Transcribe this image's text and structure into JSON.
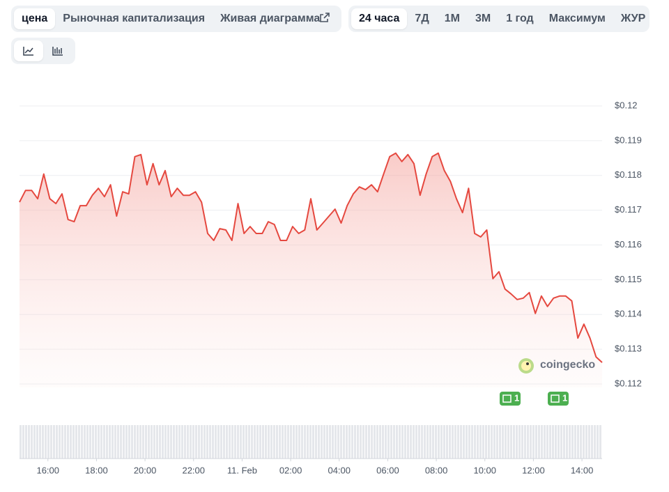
{
  "tabs": [
    "цена",
    "Рыночная капитализация",
    "Живая диаграмма"
  ],
  "ranges": [
    "24 часа",
    "7Д",
    "1М",
    "3М",
    "1 год",
    "Максимум",
    "ЖУР"
  ],
  "watermark": "coingecko",
  "news_badges": [
    "1",
    "1"
  ],
  "chart_data": {
    "type": "line",
    "x": [
      14.83,
      15.08,
      15.33,
      15.58,
      15.83,
      16.08,
      16.33,
      16.58,
      16.83,
      17.08,
      17.33,
      17.58,
      17.83,
      18.08,
      18.33,
      18.58,
      18.83,
      19.08,
      19.33,
      19.58,
      19.83,
      20.08,
      20.33,
      20.58,
      20.83,
      21.08,
      21.33,
      21.58,
      21.83,
      22.08,
      22.33,
      22.58,
      22.83,
      23.08,
      23.33,
      23.58,
      23.83,
      24.08,
      24.33,
      24.58,
      24.83,
      25.08,
      25.33,
      25.58,
      25.83,
      26.08,
      26.33,
      26.58,
      26.83,
      27.08,
      27.33,
      27.58,
      27.83,
      28.08,
      28.33,
      28.58,
      28.83,
      29.08,
      29.33,
      29.58,
      29.83,
      30.08,
      30.33,
      30.58,
      30.83,
      31.08,
      31.33,
      31.58,
      31.83,
      32.08,
      32.33,
      32.58,
      32.83,
      33.08,
      33.33,
      33.58,
      33.83,
      34.08,
      34.33,
      34.58,
      34.83,
      35.08,
      35.33,
      35.58,
      35.83,
      36.08,
      36.33,
      36.58,
      36.83,
      37.08,
      37.33,
      37.58,
      37.83,
      38.08,
      38.33,
      38.58,
      38.83
    ],
    "series": [
      {
        "color": "#e5483f",
        "values": [
          0.11723,
          0.11757,
          0.11757,
          0.11733,
          0.11804,
          0.11733,
          0.11719,
          0.11747,
          0.11673,
          0.11667,
          0.11713,
          0.11713,
          0.11743,
          0.11763,
          0.11739,
          0.11773,
          0.11683,
          0.11753,
          0.11747,
          0.11854,
          0.1186,
          0.11773,
          0.11834,
          0.11773,
          0.11814,
          0.11739,
          0.11763,
          0.11743,
          0.11743,
          0.11753,
          0.11723,
          0.11633,
          0.11613,
          0.11647,
          0.11643,
          0.11613,
          0.11719,
          0.11633,
          0.11653,
          0.11633,
          0.11633,
          0.11667,
          0.11659,
          0.11613,
          0.11613,
          0.11653,
          0.11633,
          0.11643,
          0.11733,
          0.11643,
          0.11663,
          0.11683,
          0.11703,
          0.11663,
          0.11713,
          0.11747,
          0.11767,
          0.11759,
          0.11773,
          0.11753,
          0.11804,
          0.11854,
          0.11864,
          0.1184,
          0.1186,
          0.11834,
          0.11743,
          0.11804,
          0.11854,
          0.11864,
          0.11814,
          0.11783,
          0.11733,
          0.11693,
          0.11763,
          0.11633,
          0.11623,
          0.11643,
          0.11503,
          0.11523,
          0.11473,
          0.11459,
          0.11443,
          0.11447,
          0.11463,
          0.11403,
          0.11453,
          0.11423,
          0.11447,
          0.11453,
          0.11453,
          0.11439,
          0.11332,
          0.11372,
          0.11332,
          0.11278,
          0.11262
        ]
      }
    ],
    "xlim": [
      14.83,
      38.83
    ],
    "xticks": [
      {
        "value": 16,
        "label": "16:00"
      },
      {
        "value": 18,
        "label": "18:00"
      },
      {
        "value": 20,
        "label": "20:00"
      },
      {
        "value": 22,
        "label": "22:00"
      },
      {
        "value": 24,
        "label": "11. Feb"
      },
      {
        "value": 26,
        "label": "02:00"
      },
      {
        "value": 28,
        "label": "04:00"
      },
      {
        "value": 30,
        "label": "06:00"
      },
      {
        "value": 32,
        "label": "08:00"
      },
      {
        "value": 34,
        "label": "10:00"
      },
      {
        "value": 36,
        "label": "12:00"
      },
      {
        "value": 38,
        "label": "14:00"
      }
    ],
    "ylim": [
      0.1119,
      0.1202
    ],
    "yticks": [
      {
        "value": 0.12,
        "label": "$0.12"
      },
      {
        "value": 0.119,
        "label": "$0.119"
      },
      {
        "value": 0.118,
        "label": "$0.118"
      },
      {
        "value": 0.117,
        "label": "$0.117"
      },
      {
        "value": 0.116,
        "label": "$0.116"
      },
      {
        "value": 0.115,
        "label": "$0.115"
      },
      {
        "value": 0.114,
        "label": "$0.114"
      },
      {
        "value": 0.113,
        "label": "$0.113"
      },
      {
        "value": 0.112,
        "label": "$0.112"
      }
    ],
    "grid": true
  }
}
